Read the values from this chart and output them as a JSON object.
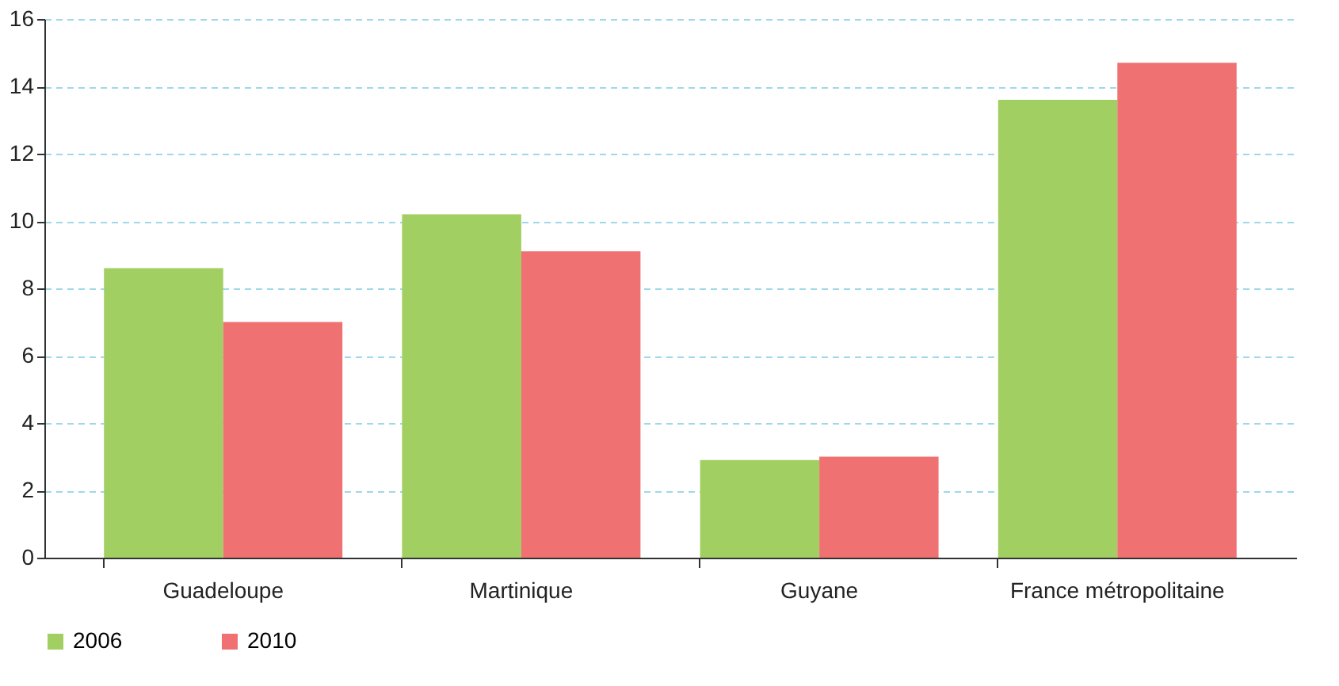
{
  "chart_data": {
    "type": "bar",
    "categories": [
      "Guadeloupe",
      "Martinique",
      "Guyane",
      "France métropolitaine"
    ],
    "series": [
      {
        "name": "2006",
        "color": "#a1cf61",
        "values": [
          8.6,
          10.2,
          2.9,
          13.6
        ]
      },
      {
        "name": "2010",
        "color": "#ef7171",
        "values": [
          7.0,
          9.1,
          3.0,
          14.7
        ]
      }
    ],
    "ylim": [
      0,
      16
    ],
    "yticks": [
      0,
      2,
      4,
      6,
      8,
      10,
      12,
      14,
      16
    ],
    "grid": "y",
    "legend": "bottom"
  }
}
